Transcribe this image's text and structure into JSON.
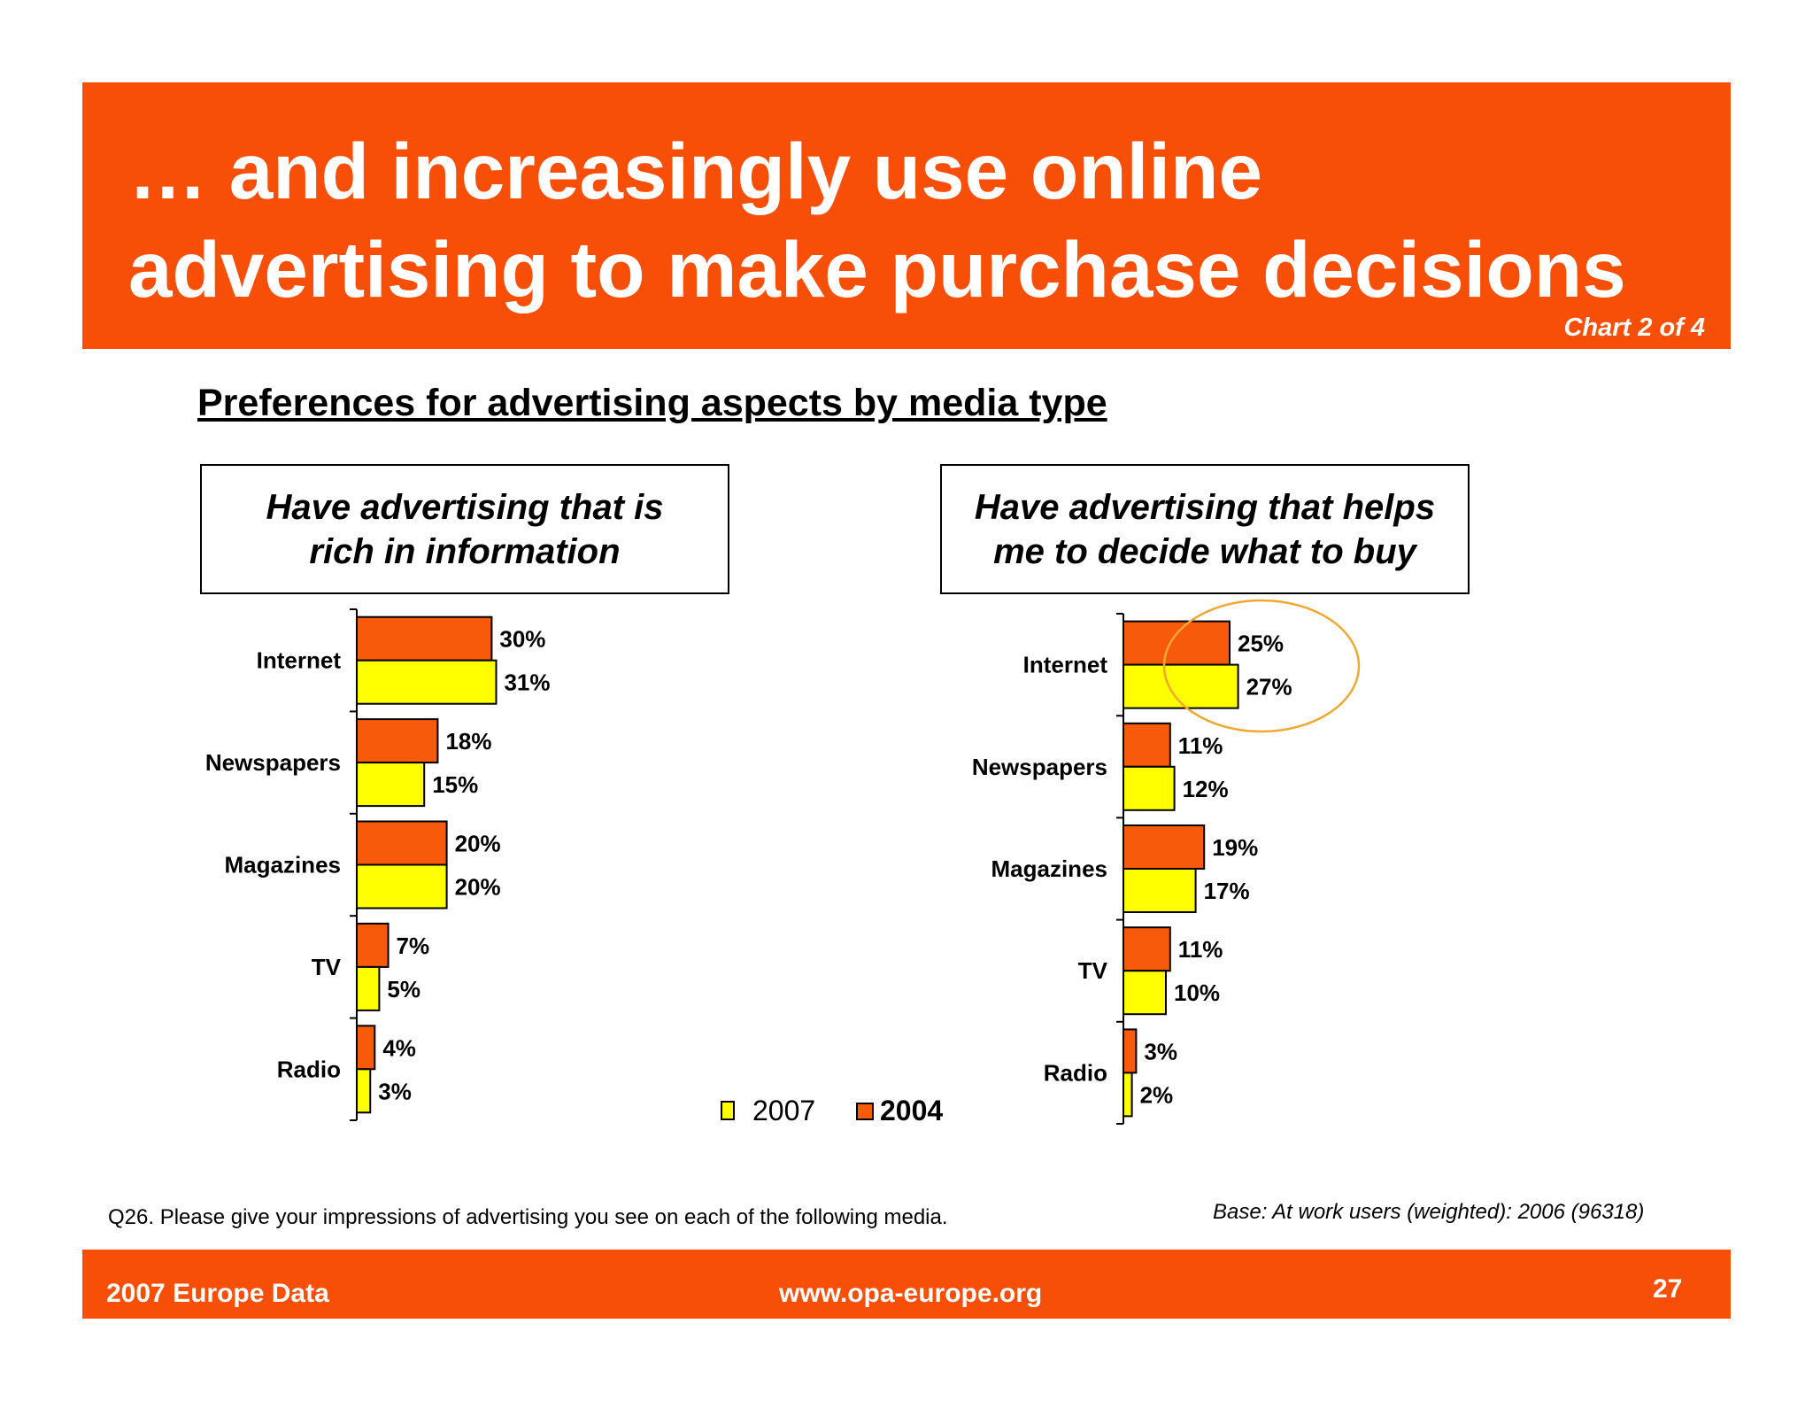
{
  "header": {
    "title_line1": "… and increasingly use online",
    "title_line2": "advertising to make purchase decisions",
    "chart_count": "Chart 2 of 4"
  },
  "subtitle": "Preferences for advertising aspects by media type",
  "panels": {
    "left_title_line1": "Have advertising that is",
    "left_title_line2": "rich in information",
    "right_title_line1": "Have advertising that helps",
    "right_title_line2": "me to decide what to buy"
  },
  "colors": {
    "brand_orange": "#f84f08",
    "series_2004": "#f65a0a",
    "series_2007": "#ffff00",
    "highlight_circle": "#f0a830"
  },
  "chart_data": [
    {
      "type": "bar",
      "orientation": "horizontal",
      "title": "Have advertising that is rich in information",
      "categories": [
        "Internet",
        "Newspapers",
        "Magazines",
        "TV",
        "Radio"
      ],
      "series": [
        {
          "name": "2004",
          "values": [
            30,
            18,
            20,
            7,
            4
          ],
          "labels": [
            "30%",
            "18%",
            "20%",
            "7%",
            "4%"
          ]
        },
        {
          "name": "2007",
          "values": [
            31,
            15,
            20,
            5,
            3
          ],
          "labels": [
            "31%",
            "15%",
            "20%",
            "5%",
            "3%"
          ]
        }
      ],
      "unit": "%",
      "xlim": [
        0,
        100
      ]
    },
    {
      "type": "bar",
      "orientation": "horizontal",
      "title": "Have advertising that helps me to decide what to buy",
      "categories": [
        "Internet",
        "Newspapers",
        "Magazines",
        "TV",
        "Radio"
      ],
      "series": [
        {
          "name": "2004",
          "values": [
            25,
            11,
            19,
            11,
            3
          ],
          "labels": [
            "25%",
            "11%",
            "19%",
            "11%",
            "3%"
          ]
        },
        {
          "name": "2007",
          "values": [
            27,
            12,
            17,
            10,
            2
          ],
          "labels": [
            "27%",
            "12%",
            "17%",
            "10%",
            "2%"
          ]
        }
      ],
      "unit": "%",
      "xlim": [
        0,
        100
      ],
      "highlight": "Internet"
    }
  ],
  "legend": {
    "label_2007": "2007",
    "label_2004": "2004"
  },
  "question": "Q26. Please give your impressions of advertising you see on each of the following media.",
  "base_note": "Base: At work users (weighted): 2006 (96318)",
  "footer": {
    "left": "2007 Europe Data",
    "center": "www.opa-europe.org",
    "page_number": "27"
  }
}
